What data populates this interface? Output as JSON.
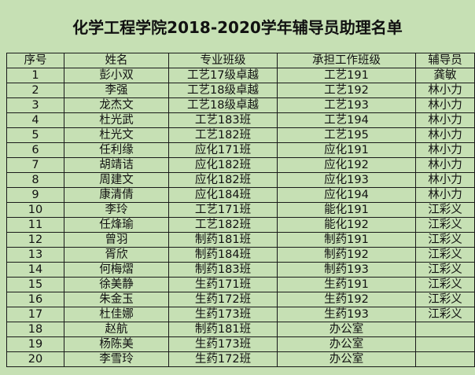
{
  "title": "化学工程学院2018-2020学年辅导员助理名单",
  "headers": [
    "序号",
    "姓名",
    "专业班级",
    "承担工作班级",
    "辅导员"
  ],
  "rows": [
    [
      "1",
      "彭小双",
      "工艺17级卓越",
      "工艺191",
      "龚敏"
    ],
    [
      "2",
      "李强",
      "工艺18级卓越",
      "工艺192",
      "林小力"
    ],
    [
      "3",
      "龙杰文",
      "工艺18级卓越",
      "工艺193",
      "林小力"
    ],
    [
      "4",
      "杜光武",
      "工艺183班",
      "工艺194",
      "林小力"
    ],
    [
      "5",
      "杜光文",
      "工艺182班",
      "工艺195",
      "林小力"
    ],
    [
      "6",
      "任利缘",
      "应化171班",
      "应化191",
      "林小力"
    ],
    [
      "7",
      "胡靖诘",
      "应化182班",
      "应化192",
      "林小力"
    ],
    [
      "8",
      "周建文",
      "应化182班",
      "应化193",
      "林小力"
    ],
    [
      "9",
      "康清倩",
      "应化184班",
      "应化194",
      "林小力"
    ],
    [
      "10",
      "李玲",
      "工艺171班",
      "能化191",
      "江彩义"
    ],
    [
      "11",
      "任烽瑜",
      "工艺182班",
      "能化192",
      "江彩义"
    ],
    [
      "12",
      "曾羽",
      "制药181班",
      "制药191",
      "江彩义"
    ],
    [
      "13",
      "胥欣",
      "制药184班",
      "制药192",
      "江彩义"
    ],
    [
      "14",
      "何梅熠",
      "制药183班",
      "制药193",
      "江彩义"
    ],
    [
      "15",
      "徐美静",
      "生药171班",
      "生药191",
      "江彩义"
    ],
    [
      "16",
      "朱金玉",
      "生药172班",
      "生药192",
      "江彩义"
    ],
    [
      "17",
      "杜佳娜",
      "生药173班",
      "生药193",
      "江彩义"
    ],
    [
      "18",
      "赵航",
      "制药181班",
      "办公室",
      ""
    ],
    [
      "19",
      "杨陈美",
      "生药173班",
      "办公室",
      ""
    ],
    [
      "20",
      "李雪玲",
      "生药172班",
      "办公室",
      ""
    ]
  ]
}
